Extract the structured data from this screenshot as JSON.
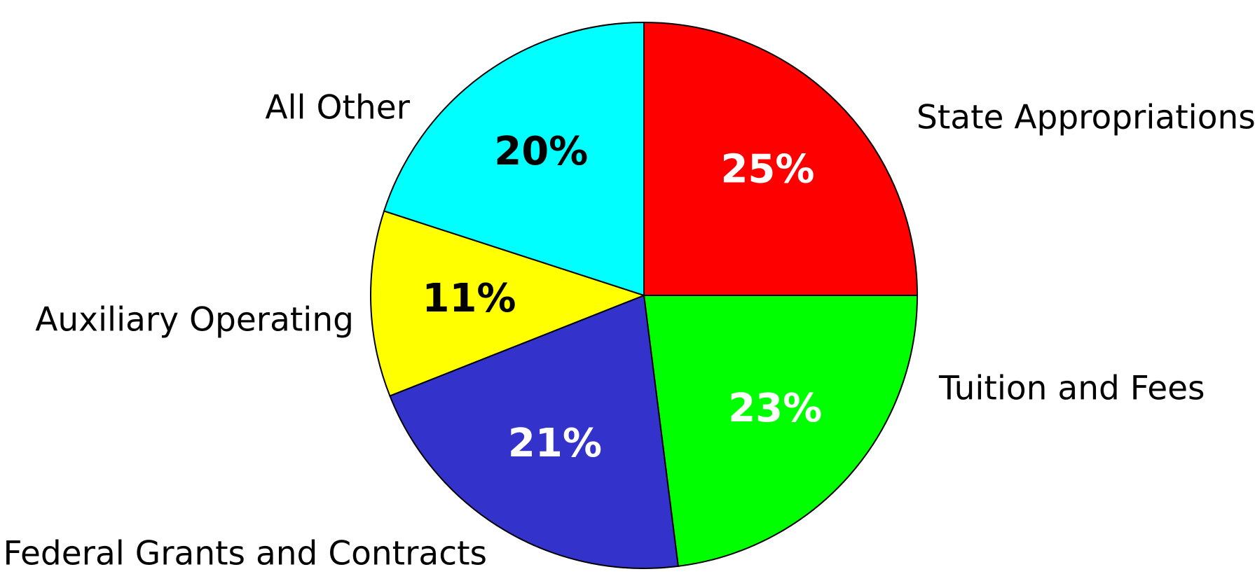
{
  "chart_data": {
    "type": "pie",
    "categories": [
      "State Appropriations",
      "Tuition and Fees",
      "Federal Grants and Contracts",
      "Auxiliary Operating",
      "All Other"
    ],
    "values": [
      25,
      23,
      21,
      11,
      20
    ],
    "value_labels": [
      "25%",
      "23%",
      "21%",
      "11%",
      "20%"
    ],
    "colors": [
      "#ff0000",
      "#00ff00",
      "#3333cc",
      "#ffff00",
      "#00ffff"
    ],
    "label_colors": [
      "#ffffff",
      "#ffffff",
      "#ffffff",
      "#000000",
      "#000000"
    ]
  }
}
